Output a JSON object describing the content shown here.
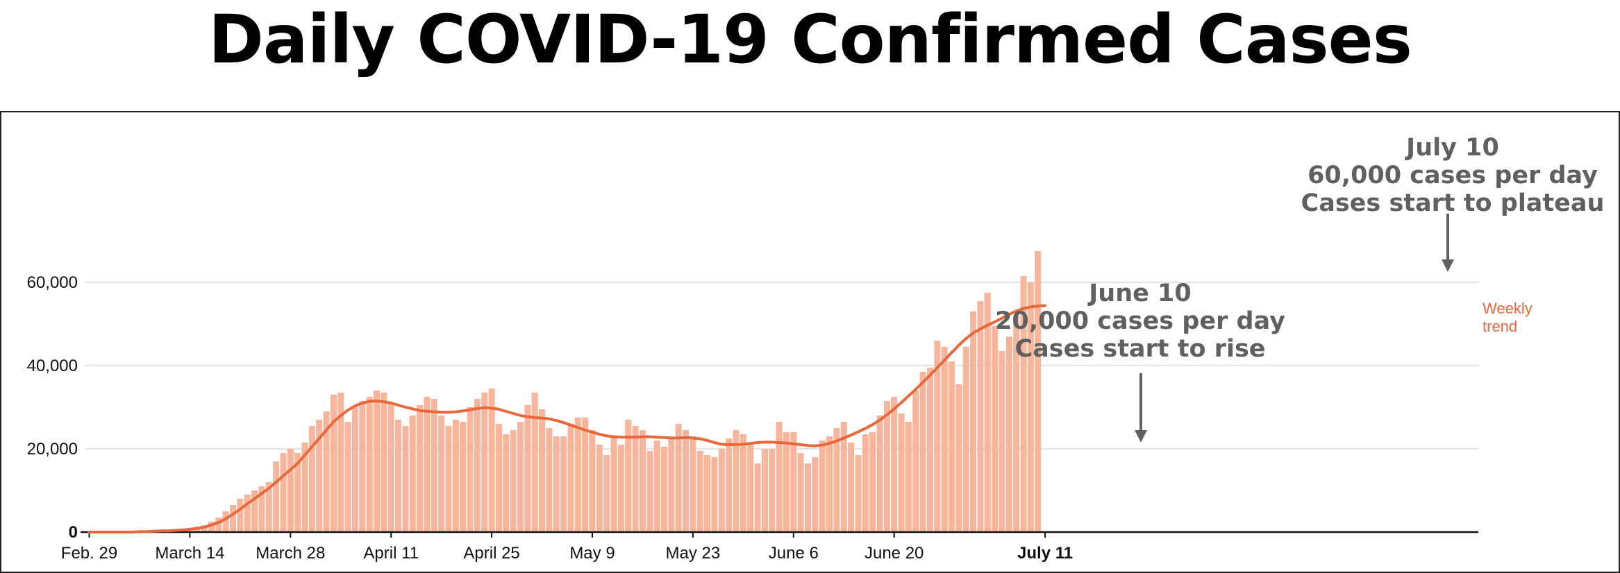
{
  "title": "Daily COVID-19 Confirmed Cases",
  "colors": {
    "bar": "#f7b59c",
    "trend": "#e8683c",
    "annotation": "#606060",
    "grid": "#d9d9d9"
  },
  "chart_data": {
    "type": "bar",
    "title": "Daily COVID-19 Confirmed Cases",
    "xlabel": "",
    "ylabel": "",
    "ylim": [
      0,
      70000
    ],
    "yticks": [
      0,
      20000,
      40000,
      60000
    ],
    "ytick_labels": [
      "0",
      "20,000",
      "40,000",
      "60,000"
    ],
    "grid": true,
    "x_start": "Feb. 29",
    "x_end": "July 11",
    "xtick_labels": [
      "Feb. 29",
      "March 14",
      "March 28",
      "April 11",
      "April 25",
      "May 9",
      "May 23",
      "June 6",
      "June 20",
      "July 11"
    ],
    "series": [
      {
        "name": "",
        "values": [
          0,
          0,
          0,
          0,
          0,
          0,
          100,
          100,
          200,
          300,
          300,
          400,
          500,
          700,
          900,
          1200,
          1600,
          2500,
          3500,
          5000,
          6500,
          8000,
          9000,
          10000,
          11000,
          12000,
          17000,
          19000,
          20000,
          19000,
          21500,
          25500,
          27000,
          29000,
          33000,
          33500,
          26500,
          30000,
          31500,
          32500,
          34000,
          33500,
          31000,
          27000,
          25500,
          28000,
          30500,
          32500,
          32000,
          28000,
          25500,
          27000,
          26500,
          30000,
          32000,
          33500,
          34500,
          26000,
          23500,
          24500,
          26500,
          30500,
          33500,
          29500,
          25000,
          23000,
          23000,
          26000,
          27500,
          27500,
          24500,
          21000,
          18500,
          23000,
          21000,
          27000,
          25500,
          24500,
          19500,
          22000,
          20500,
          22500,
          26000,
          24500,
          23000,
          19500,
          18500,
          18000,
          20000,
          22500,
          24500,
          23500,
          21000,
          16500,
          20000,
          20000,
          26500,
          24000,
          24000,
          19000,
          16500,
          18000,
          22000,
          23000,
          25000,
          26500,
          21500,
          18500,
          23500,
          24000,
          28000,
          31500,
          32500,
          28500,
          26500,
          34000,
          38500,
          39500,
          46000,
          44500,
          41000,
          35500,
          44500,
          53000,
          55500,
          57500,
          49500,
          43500,
          47000,
          52000,
          61500,
          60000,
          67500
        ]
      },
      {
        "name": "Weekly trend",
        "values": [
          0,
          0,
          0,
          0,
          0,
          0,
          0,
          100,
          100,
          200,
          300,
          300,
          400,
          500,
          700,
          900,
          1200,
          1700,
          2300,
          3200,
          4300,
          5500,
          6800,
          8000,
          9300,
          10500,
          12000,
          13500,
          15000,
          16500,
          18500,
          20500,
          22500,
          24500,
          26500,
          28000,
          29300,
          30300,
          31000,
          31400,
          31500,
          31300,
          31000,
          30500,
          30000,
          29600,
          29200,
          29000,
          28900,
          28800,
          28800,
          28900,
          29100,
          29400,
          29700,
          29900,
          29800,
          29500,
          29000,
          28500,
          28000,
          27700,
          27500,
          27400,
          27200,
          26800,
          26300,
          25700,
          25100,
          24500,
          24000,
          23500,
          23100,
          22900,
          22800,
          22800,
          22800,
          22900,
          22900,
          22800,
          22700,
          22600,
          22600,
          22700,
          22600,
          22400,
          22000,
          21500,
          21100,
          21000,
          21000,
          21100,
          21300,
          21500,
          21600,
          21600,
          21500,
          21400,
          21200,
          21000,
          20800,
          20700,
          20900,
          21300,
          21900,
          22600,
          23300,
          24100,
          24900,
          25800,
          26900,
          28200,
          29600,
          31100,
          32700,
          34300,
          36000,
          37700,
          39500,
          41300,
          43100,
          44900,
          46500,
          47800,
          48800,
          49700,
          50500,
          51400,
          52300,
          53100,
          53700,
          54100,
          54300,
          54400
        ]
      }
    ],
    "trend_label": [
      "Weekly",
      "trend"
    ],
    "annotations": [
      {
        "lines": [
          "June 10",
          "20,000 cases per day",
          "Cases start to rise"
        ]
      },
      {
        "lines": [
          "July 10",
          "60,000 cases per day",
          "Cases start to plateau"
        ]
      }
    ]
  }
}
